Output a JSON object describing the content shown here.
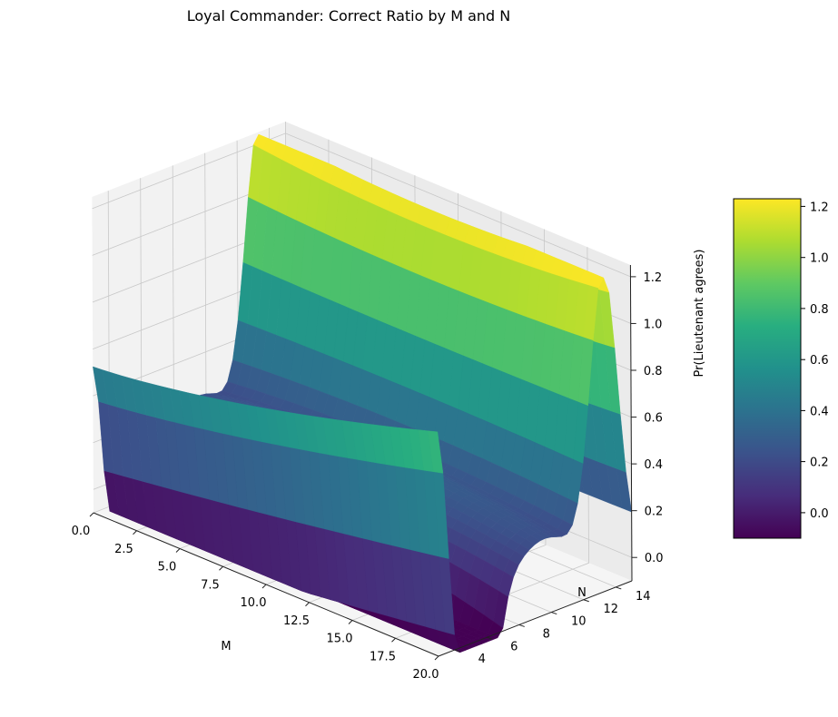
{
  "chart_data": {
    "type": "surface3d",
    "title": "Loyal Commander: Correct Ratio by M and N",
    "xlabel": "M",
    "ylabel": "N",
    "zlabel": "Pr(Lieutenant agrees)",
    "xlim": [
      0,
      20
    ],
    "ylim": [
      3,
      15
    ],
    "zlim": [
      -0.1,
      1.25
    ],
    "x_ticks": [
      "0.0",
      "2.5",
      "5.0",
      "7.5",
      "10.0",
      "12.5",
      "15.0",
      "17.5",
      "20.0"
    ],
    "y_ticks": [
      "4",
      "6",
      "8",
      "10",
      "12",
      "14"
    ],
    "z_ticks": [
      "0.0",
      "0.2",
      "0.4",
      "0.6",
      "0.8",
      "1.0",
      "1.2"
    ],
    "colorbar_ticks": [
      "0.0",
      "0.2",
      "0.4",
      "0.6",
      "0.8",
      "1.0",
      "1.2"
    ],
    "colormap": "viridis",
    "colorbar_range": [
      -0.1,
      1.23
    ],
    "grid": true,
    "surface_samples": {
      "at_N_3": {
        "M": [
          0,
          2,
          5,
          10,
          15,
          18,
          20
        ],
        "Z": [
          0.55,
          0.55,
          0.55,
          0.58,
          0.62,
          0.9,
          0.85
        ]
      },
      "at_N_15": {
        "M": [
          0,
          2,
          5,
          10,
          15,
          18,
          20
        ],
        "Z": [
          0.7,
          0.72,
          0.75,
          0.82,
          0.88,
          0.92,
          0.78
        ]
      },
      "at_M_0": {
        "N": [
          3,
          4.5,
          6,
          9,
          12,
          13.5,
          15
        ],
        "Z": [
          0.55,
          0.05,
          -0.02,
          0.28,
          0.98,
          1.2,
          0.7
        ]
      },
      "at_M_20": {
        "N": [
          3,
          4.5,
          6,
          9,
          12,
          13.5,
          15
        ],
        "Z": [
          0.85,
          -0.1,
          0.05,
          0.15,
          0.6,
          1.15,
          0.78
        ]
      }
    }
  }
}
